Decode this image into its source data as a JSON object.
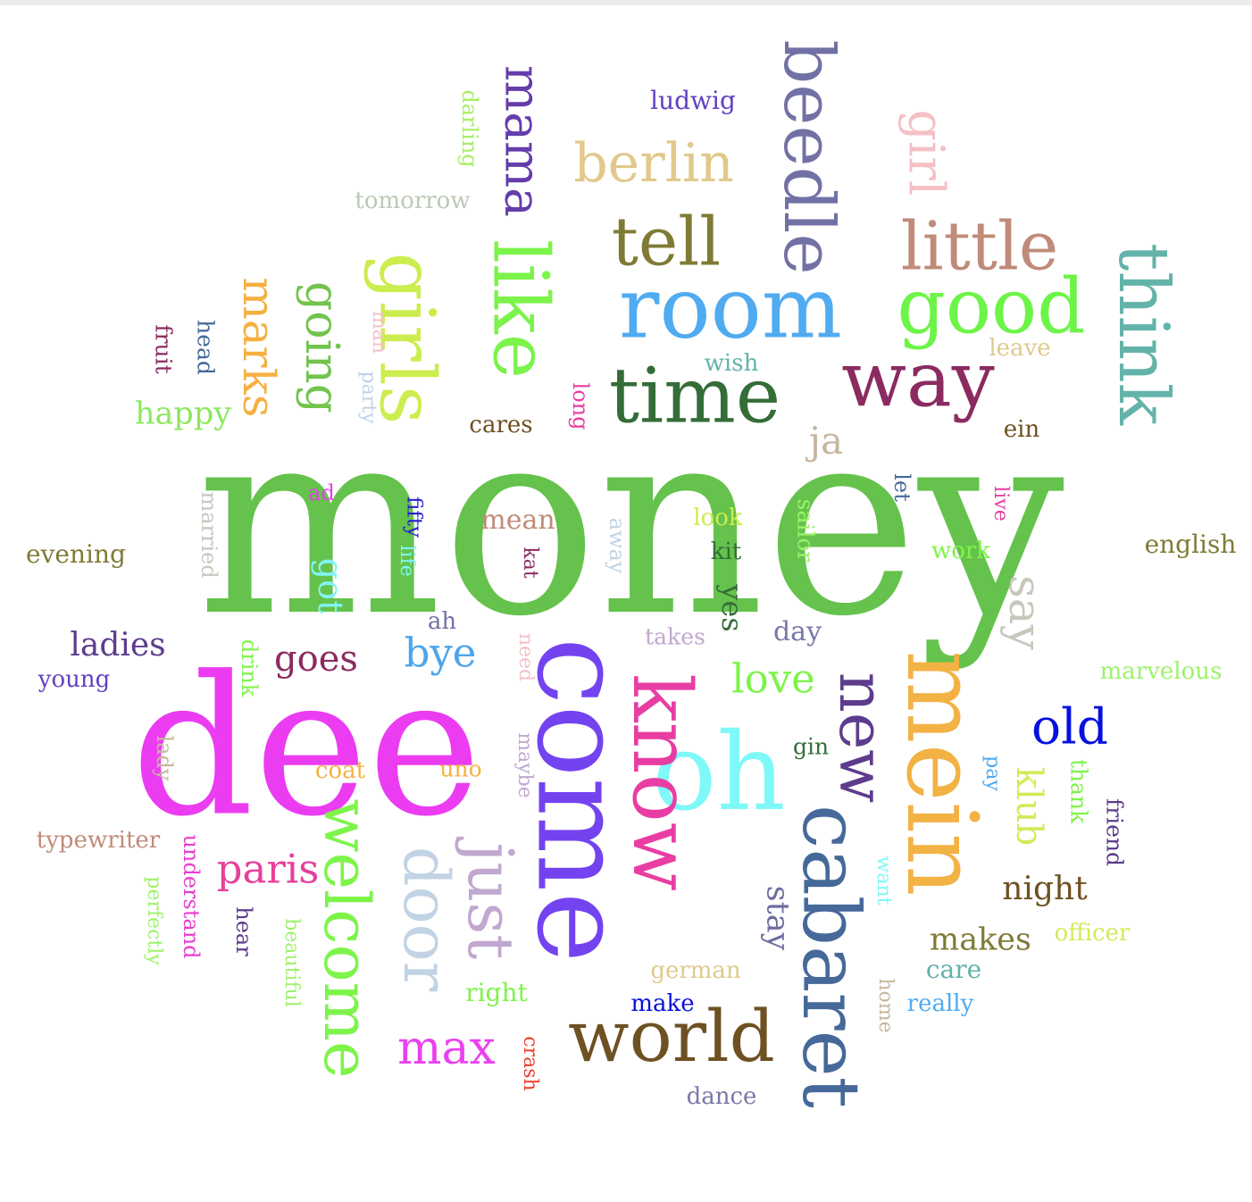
{
  "words": [
    {
      "text": "money",
      "color": "#65c24c"
    },
    {
      "text": "dee",
      "color": "#eb3cf2"
    },
    {
      "text": "come",
      "color": "#7443f0"
    },
    {
      "text": "oh",
      "color": "#7ff8f8"
    },
    {
      "text": "know",
      "color": "#e83ea3"
    },
    {
      "text": "mein",
      "color": "#f2b244"
    },
    {
      "text": "cabaret",
      "color": "#46699a"
    },
    {
      "text": "new",
      "color": "#5d3c8d"
    },
    {
      "text": "world",
      "color": "#6e5122"
    },
    {
      "text": "welcome",
      "color": "#7ef44a"
    },
    {
      "text": "door",
      "color": "#c1d3e4"
    },
    {
      "text": "just",
      "color": "#c0a8d0"
    },
    {
      "text": "room",
      "color": "#50abf1"
    },
    {
      "text": "time",
      "color": "#346d37"
    },
    {
      "text": "way",
      "color": "#8b2b61"
    },
    {
      "text": "good",
      "color": "#6df448"
    },
    {
      "text": "little",
      "color": "#c08b79"
    },
    {
      "text": "think",
      "color": "#63b3aa"
    },
    {
      "text": "beedle",
      "color": "#7271a5"
    },
    {
      "text": "girls",
      "color": "#cced4f"
    },
    {
      "text": "like",
      "color": "#7cf34a"
    },
    {
      "text": "tell",
      "color": "#7f7b36"
    },
    {
      "text": "berlin",
      "color": "#e1c98c"
    },
    {
      "text": "mama",
      "color": "#653dab"
    },
    {
      "text": "girl",
      "color": "#f4c0c6"
    },
    {
      "text": "going",
      "color": "#72c44d"
    },
    {
      "text": "marks",
      "color": "#f5b040"
    },
    {
      "text": "say",
      "color": "#c6c8bc"
    },
    {
      "text": "max",
      "color": "#ea41ef"
    },
    {
      "text": "paris",
      "color": "#e7409b"
    },
    {
      "text": "bye",
      "color": "#4fa4ea"
    },
    {
      "text": "love",
      "color": "#7ef44a"
    },
    {
      "text": "old",
      "color": "#0711dd"
    },
    {
      "text": "got",
      "color": "#83f3f5"
    },
    {
      "text": "goes",
      "color": "#8b2b61"
    },
    {
      "text": "ladies",
      "color": "#5d3c8d"
    },
    {
      "text": "klub",
      "color": "#d0ec5a"
    },
    {
      "text": "night",
      "color": "#6e5122"
    },
    {
      "text": "makes",
      "color": "#7f7b36"
    },
    {
      "text": "stay",
      "color": "#6f6ea0"
    },
    {
      "text": "ja",
      "color": "#c7b69f"
    },
    {
      "text": "happy",
      "color": "#8be85f"
    },
    {
      "text": "mean",
      "color": "#c08b79"
    },
    {
      "text": "yes",
      "color": "#346d37"
    },
    {
      "text": "day",
      "color": "#7a78a8"
    },
    {
      "text": "english",
      "color": "#7f7b36"
    },
    {
      "text": "evening",
      "color": "#7f7b36"
    },
    {
      "text": "typewriter",
      "color": "#c08b79"
    },
    {
      "text": "marvelous",
      "color": "#9ef26b"
    },
    {
      "text": "tomorrow",
      "color": "#bcc9b6"
    },
    {
      "text": "ludwig",
      "color": "#6341c4"
    },
    {
      "text": "darling",
      "color": "#a7ef64"
    },
    {
      "text": "wish",
      "color": "#63b3aa"
    },
    {
      "text": "leave",
      "color": "#e1c98c"
    },
    {
      "text": "ein",
      "color": "#6e5122"
    },
    {
      "text": "cares",
      "color": "#6e5122"
    },
    {
      "text": "long",
      "color": "#e83ea3"
    },
    {
      "text": "fruit",
      "color": "#8b2b61"
    },
    {
      "text": "head",
      "color": "#46699a"
    },
    {
      "text": "man",
      "color": "#f4c0c6"
    },
    {
      "text": "party",
      "color": "#c1d3e4"
    },
    {
      "text": "ad",
      "color": "#eb3cf2"
    },
    {
      "text": "married",
      "color": "#c6c8bc"
    },
    {
      "text": "fifty",
      "color": "#2a1fd0"
    },
    {
      "text": "life",
      "color": "#7ff8f8"
    },
    {
      "text": "kat",
      "color": "#8b2b61"
    },
    {
      "text": "away",
      "color": "#c1d3e4"
    },
    {
      "text": "look",
      "color": "#cced4f"
    },
    {
      "text": "kit",
      "color": "#346d37"
    },
    {
      "text": "sailor",
      "color": "#9ef26b"
    },
    {
      "text": "let",
      "color": "#46699a"
    },
    {
      "text": "live",
      "color": "#e83ea3"
    },
    {
      "text": "work",
      "color": "#7ef44a"
    },
    {
      "text": "ah",
      "color": "#7271a5"
    },
    {
      "text": "need",
      "color": "#f4c0c6"
    },
    {
      "text": "takes",
      "color": "#c0a8d0"
    },
    {
      "text": "drink",
      "color": "#7ef44a"
    },
    {
      "text": "young",
      "color": "#6341c4"
    },
    {
      "text": "lady",
      "color": "#c7b69f"
    },
    {
      "text": "coat",
      "color": "#f5b040"
    },
    {
      "text": "uno",
      "color": "#f5b040"
    },
    {
      "text": "maybe",
      "color": "#c0a8d0"
    },
    {
      "text": "gin",
      "color": "#346d37"
    },
    {
      "text": "pay",
      "color": "#50abf1"
    },
    {
      "text": "thank",
      "color": "#7ef44a"
    },
    {
      "text": "friend",
      "color": "#5d3c8d"
    },
    {
      "text": "want",
      "color": "#7ff8f8"
    },
    {
      "text": "officer",
      "color": "#d0ec5a"
    },
    {
      "text": "care",
      "color": "#63b3aa"
    },
    {
      "text": "home",
      "color": "#c7b69f"
    },
    {
      "text": "really",
      "color": "#50abf1"
    },
    {
      "text": "german",
      "color": "#e1c98c"
    },
    {
      "text": "make",
      "color": "#0711dd"
    },
    {
      "text": "right",
      "color": "#7ef44a"
    },
    {
      "text": "crash",
      "color": "#ee3a2e"
    },
    {
      "text": "dance",
      "color": "#7a78a8"
    },
    {
      "text": "understand",
      "color": "#e83ece"
    },
    {
      "text": "perfectly",
      "color": "#9ef26b"
    },
    {
      "text": "hear",
      "color": "#5d3c8d"
    },
    {
      "text": "beautiful",
      "color": "#9ef26b"
    }
  ]
}
